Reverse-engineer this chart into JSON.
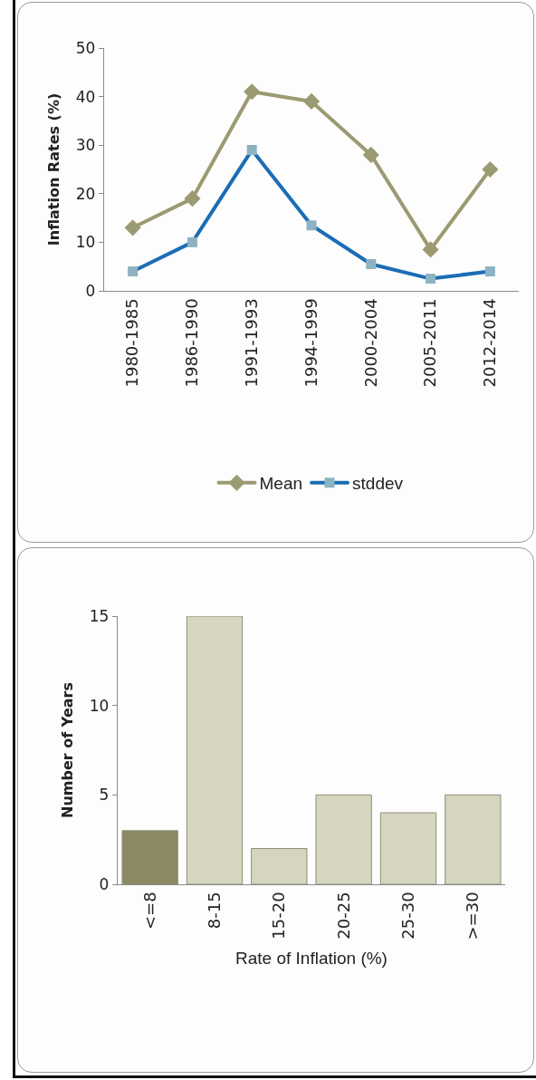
{
  "chart_data": [
    {
      "type": "line",
      "ylabel": "Inflation Rates (%)",
      "categories": [
        "1980-1985",
        "1986-1990",
        "1991-1993",
        "1994-1999",
        "2000-2004",
        "2005-2011",
        "2012-2014"
      ],
      "series": [
        {
          "name": "Mean",
          "color": "#9c9a72",
          "marker": "diamond",
          "values": [
            13,
            19,
            41,
            39,
            28,
            8.5,
            25
          ]
        },
        {
          "name": "stddev",
          "color": "#1a6db5",
          "colors": [
            "#8db3c2",
            "#8db3c2",
            "#8db3c2",
            "#8db3c2",
            "#8db3c2",
            "#8db3c2",
            "#8db3c2"
          ],
          "marker": "square",
          "values": [
            4,
            10,
            29,
            13.5,
            5.5,
            2.5,
            4
          ]
        }
      ],
      "ylim": [
        0,
        50
      ],
      "yticks": [
        0,
        10,
        20,
        30,
        40,
        50
      ],
      "legend": "bottom"
    },
    {
      "type": "bar",
      "xlabel": "Rate of Inflation (%)",
      "ylabel": "Number of Years",
      "categories": [
        "<=8",
        "8-15",
        "15-20",
        "20-25",
        "25-30",
        ">=30"
      ],
      "values": [
        3,
        15,
        2,
        5,
        4,
        5
      ],
      "colors": [
        "#8c8863",
        "#d6d5bf",
        "#d6d5bf",
        "#d6d5bf",
        "#d6d5bf",
        "#d6d5bf"
      ],
      "ylim": [
        0,
        15
      ],
      "yticks": [
        0,
        5,
        10,
        15
      ]
    }
  ]
}
